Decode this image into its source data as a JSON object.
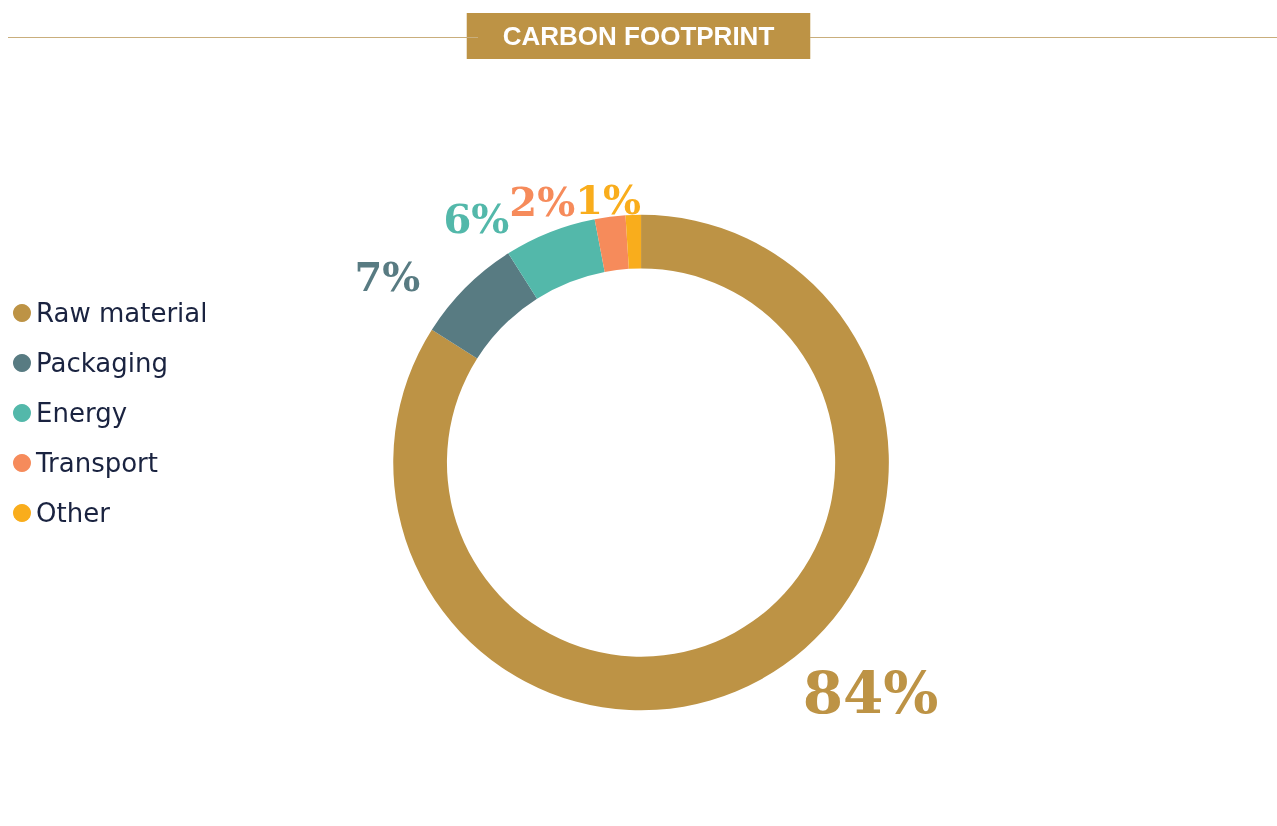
{
  "chart_data": {
    "type": "donut",
    "title": "CARBON FOOTPRINT",
    "categories": [
      "Raw material",
      "Packaging",
      "Energy",
      "Transport",
      "Other"
    ],
    "values": [
      84,
      7,
      6,
      2,
      1
    ],
    "colors": [
      "#bd9345",
      "#587b82",
      "#53b8aa",
      "#f68b5b",
      "#f9ad1c"
    ],
    "value_labels": [
      "84%",
      "7%",
      "6%",
      "2%",
      "1%"
    ],
    "legend": "left"
  }
}
